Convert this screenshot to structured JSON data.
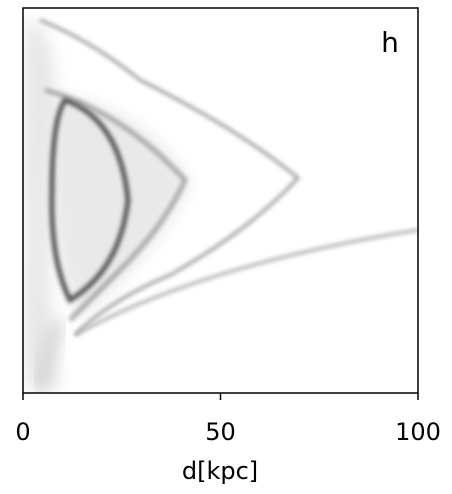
{
  "chart_data": {
    "type": "density",
    "annotation": "h",
    "xlabel": "d[kpc]",
    "xlim": [
      0,
      100
    ],
    "xticks": [
      0,
      50,
      100
    ]
  }
}
